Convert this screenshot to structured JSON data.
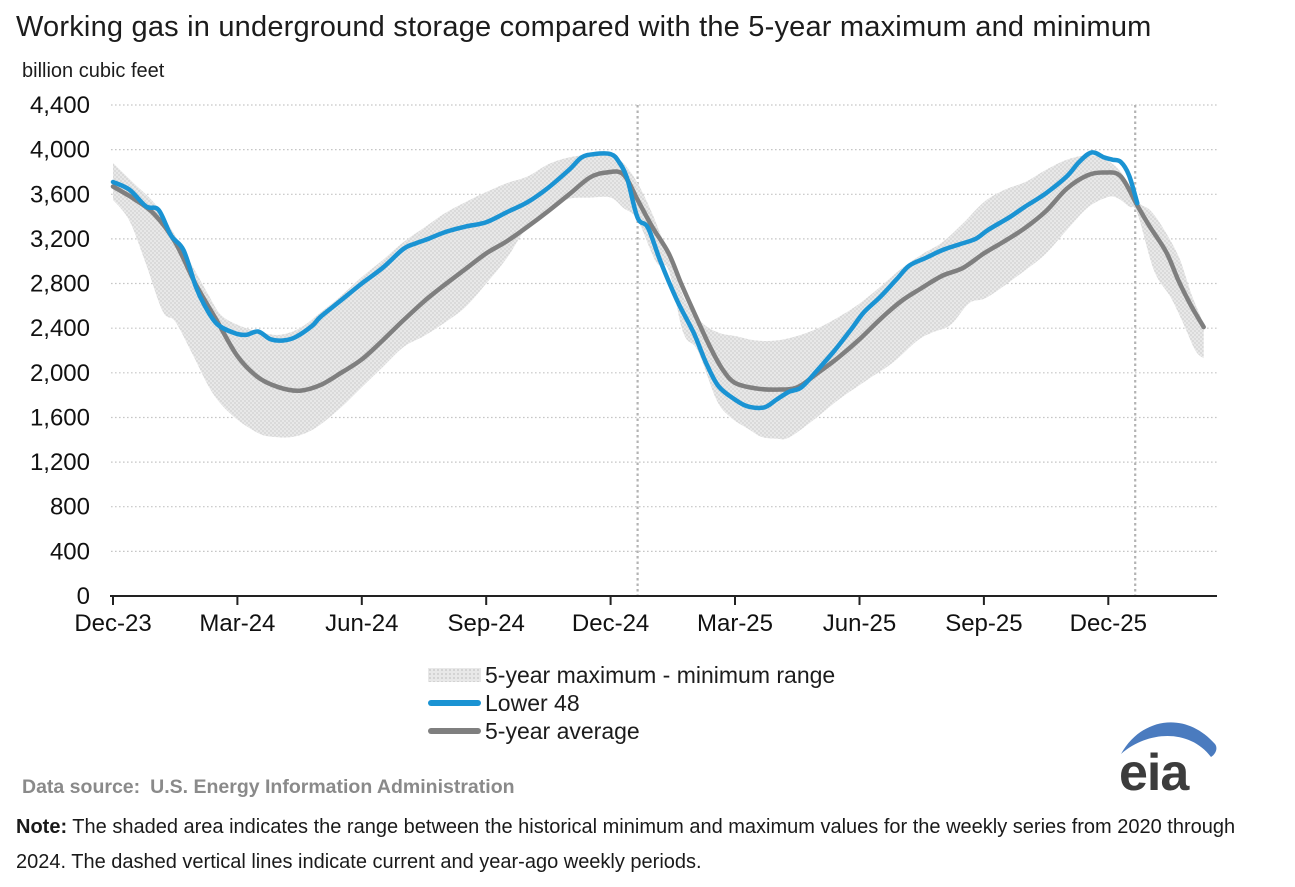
{
  "title": "Working gas in underground storage compared with the 5-year maximum and minimum",
  "unit_label": "billion cubic feet",
  "legend": [
    {
      "label": "5-year maximum - minimum range",
      "type": "band",
      "color": "#e8e8e8"
    },
    {
      "label": "Lower 48",
      "type": "line",
      "color": "#1a93d3"
    },
    {
      "label": "5-year average",
      "type": "line",
      "color": "#7f7f7f"
    }
  ],
  "footer": {
    "data_source_label": "Data source:",
    "data_source": "U.S. Energy Information Administration",
    "note_label": "Note:",
    "note_text": " The shaded area indicates the range between the historical minimum and maximum values for the weekly series from 2020 through 2024. The dashed vertical lines indicate current and year-ago weekly periods.",
    "logo_text": "eia"
  },
  "chart_data": {
    "type": "line",
    "title": "Working gas in underground storage compared with the 5-year maximum and minimum",
    "xlabel": "",
    "ylabel": "billion cubic feet",
    "ylim": [
      0,
      4400
    ],
    "y_tick_step": 400,
    "y_tick_labels": [
      "0",
      "400",
      "800",
      "1,200",
      "1,600",
      "2,000",
      "2,400",
      "2,800",
      "3,200",
      "3,600",
      "4,000",
      "4,400"
    ],
    "x_unit": "months since Dec-2023",
    "x_tick_months": [
      0,
      3,
      6,
      9,
      12,
      15,
      18,
      21,
      24
    ],
    "x_tick_labels": [
      "Dec-23",
      "Mar-24",
      "Jun-24",
      "Sep-24",
      "Dec-24",
      "Mar-25",
      "Jun-25",
      "Sep-25",
      "Dec-25"
    ],
    "xlim_months": [
      0,
      26.3
    ],
    "grid": "dotted-horizontal",
    "legend_position": "bottom-center",
    "dashed_vlines_months": [
      12.65,
      24.65
    ],
    "dashed_vlines_meaning": "current and year-ago weekly periods",
    "colors": {
      "lower48": "#1a93d3",
      "average": "#7f7f7f",
      "band_fill": "#e8e8e8",
      "band_dots": "#cfcfcf",
      "gridline": "#c6c6c6",
      "axis": "#222222",
      "dashed_vline": "#b3b3b3"
    },
    "series": [
      {
        "name": "5-year maximum",
        "role": "band-top",
        "points": [
          [
            0,
            3880
          ],
          [
            0.5,
            3700
          ],
          [
            1,
            3520
          ],
          [
            1.4,
            3290
          ],
          [
            1.7,
            3100
          ],
          [
            2,
            2900
          ],
          [
            2.3,
            2700
          ],
          [
            2.6,
            2520
          ],
          [
            3,
            2430
          ],
          [
            3.5,
            2370
          ],
          [
            4,
            2340
          ],
          [
            4.5,
            2400
          ],
          [
            5,
            2540
          ],
          [
            5.5,
            2690
          ],
          [
            6,
            2860
          ],
          [
            6.5,
            3010
          ],
          [
            7,
            3170
          ],
          [
            7.5,
            3300
          ],
          [
            8,
            3430
          ],
          [
            8.5,
            3530
          ],
          [
            9,
            3620
          ],
          [
            9.5,
            3700
          ],
          [
            10,
            3760
          ],
          [
            10.5,
            3870
          ],
          [
            11,
            3930
          ],
          [
            11.5,
            3955
          ],
          [
            12,
            3940
          ],
          [
            12.3,
            3880
          ],
          [
            12.65,
            3700
          ],
          [
            13,
            3430
          ],
          [
            13.4,
            3050
          ],
          [
            13.8,
            2650
          ],
          [
            14.2,
            2450
          ],
          [
            14.6,
            2360
          ],
          [
            15,
            2330
          ],
          [
            15.5,
            2290
          ],
          [
            16,
            2290
          ],
          [
            16.5,
            2330
          ],
          [
            17,
            2400
          ],
          [
            17.5,
            2500
          ],
          [
            18,
            2620
          ],
          [
            18.5,
            2770
          ],
          [
            19,
            2930
          ],
          [
            19.5,
            3060
          ],
          [
            20,
            3170
          ],
          [
            20.5,
            3340
          ],
          [
            21,
            3530
          ],
          [
            21.5,
            3640
          ],
          [
            22,
            3710
          ],
          [
            22.5,
            3820
          ],
          [
            23,
            3910
          ],
          [
            23.5,
            3950
          ],
          [
            23.9,
            3920
          ],
          [
            24.3,
            3800
          ],
          [
            24.7,
            3540
          ],
          [
            25,
            3460
          ],
          [
            25.3,
            3310
          ],
          [
            25.7,
            3040
          ],
          [
            26,
            2710
          ],
          [
            26.3,
            2440
          ]
        ]
      },
      {
        "name": "5-year minimum",
        "role": "band-bottom",
        "points": [
          [
            0,
            3550
          ],
          [
            0.4,
            3360
          ],
          [
            0.8,
            2970
          ],
          [
            1.2,
            2550
          ],
          [
            1.5,
            2460
          ],
          [
            1.9,
            2180
          ],
          [
            2.4,
            1820
          ],
          [
            2.9,
            1610
          ],
          [
            3.5,
            1460
          ],
          [
            3.9,
            1425
          ],
          [
            4.4,
            1430
          ],
          [
            4.9,
            1510
          ],
          [
            5.5,
            1690
          ],
          [
            6,
            1870
          ],
          [
            6.5,
            2050
          ],
          [
            7,
            2230
          ],
          [
            7.5,
            2330
          ],
          [
            8,
            2450
          ],
          [
            8.5,
            2590
          ],
          [
            9,
            2800
          ],
          [
            9.5,
            3030
          ],
          [
            10,
            3310
          ],
          [
            10.6,
            3480
          ],
          [
            11,
            3560
          ],
          [
            11.5,
            3570
          ],
          [
            12,
            3570
          ],
          [
            12.3,
            3480
          ],
          [
            12.65,
            3370
          ],
          [
            13.1,
            2990
          ],
          [
            13.4,
            2920
          ],
          [
            13.75,
            2360
          ],
          [
            14.1,
            2200
          ],
          [
            14.55,
            1760
          ],
          [
            14.9,
            1600
          ],
          [
            15.35,
            1490
          ],
          [
            15.65,
            1425
          ],
          [
            16,
            1410
          ],
          [
            16.3,
            1420
          ],
          [
            16.9,
            1580
          ],
          [
            17.5,
            1760
          ],
          [
            18.2,
            1940
          ],
          [
            18.8,
            2090
          ],
          [
            19.4,
            2290
          ],
          [
            19.75,
            2360
          ],
          [
            20.2,
            2430
          ],
          [
            20.65,
            2625
          ],
          [
            21.1,
            2680
          ],
          [
            22,
            2920
          ],
          [
            22.5,
            3070
          ],
          [
            23,
            3280
          ],
          [
            23.5,
            3480
          ],
          [
            23.95,
            3570
          ],
          [
            24.2,
            3570
          ],
          [
            24.5,
            3490
          ],
          [
            24.7,
            3430
          ],
          [
            25.1,
            2920
          ],
          [
            25.5,
            2680
          ],
          [
            25.8,
            2450
          ],
          [
            26.1,
            2200
          ],
          [
            26.3,
            2130
          ]
        ]
      },
      {
        "name": "Lower 48",
        "role": "line",
        "points": [
          [
            0,
            3710
          ],
          [
            0.4,
            3640
          ],
          [
            0.8,
            3490
          ],
          [
            1.1,
            3460
          ],
          [
            1.4,
            3230
          ],
          [
            1.7,
            3100
          ],
          [
            2,
            2770
          ],
          [
            2.2,
            2610
          ],
          [
            2.5,
            2440
          ],
          [
            2.9,
            2360
          ],
          [
            3.2,
            2340
          ],
          [
            3.5,
            2370
          ],
          [
            3.8,
            2300
          ],
          [
            4.1,
            2290
          ],
          [
            4.4,
            2320
          ],
          [
            4.8,
            2420
          ],
          [
            5,
            2500
          ],
          [
            5.5,
            2650
          ],
          [
            6,
            2800
          ],
          [
            6.5,
            2940
          ],
          [
            7,
            3110
          ],
          [
            7.3,
            3160
          ],
          [
            7.6,
            3200
          ],
          [
            8,
            3260
          ],
          [
            8.5,
            3310
          ],
          [
            9,
            3350
          ],
          [
            9.5,
            3440
          ],
          [
            10,
            3530
          ],
          [
            10.5,
            3660
          ],
          [
            11,
            3820
          ],
          [
            11.3,
            3930
          ],
          [
            11.6,
            3960
          ],
          [
            12,
            3960
          ],
          [
            12.2,
            3890
          ],
          [
            12.4,
            3740
          ],
          [
            12.65,
            3390
          ],
          [
            12.9,
            3300
          ],
          [
            13.2,
            3000
          ],
          [
            13.6,
            2650
          ],
          [
            14,
            2360
          ],
          [
            14.3,
            2090
          ],
          [
            14.6,
            1880
          ],
          [
            15,
            1760
          ],
          [
            15.3,
            1700
          ],
          [
            15.7,
            1690
          ],
          [
            16,
            1760
          ],
          [
            16.3,
            1830
          ],
          [
            16.6,
            1870
          ],
          [
            17,
            2030
          ],
          [
            17.4,
            2200
          ],
          [
            17.8,
            2390
          ],
          [
            18.1,
            2540
          ],
          [
            18.5,
            2680
          ],
          [
            18.9,
            2840
          ],
          [
            19.2,
            2960
          ],
          [
            19.6,
            3030
          ],
          [
            20,
            3100
          ],
          [
            20.4,
            3150
          ],
          [
            20.8,
            3200
          ],
          [
            21.1,
            3280
          ],
          [
            21.6,
            3390
          ],
          [
            22,
            3490
          ],
          [
            22.5,
            3610
          ],
          [
            23,
            3760
          ],
          [
            23.3,
            3890
          ],
          [
            23.6,
            3975
          ],
          [
            23.9,
            3930
          ],
          [
            24.1,
            3910
          ],
          [
            24.3,
            3890
          ],
          [
            24.5,
            3770
          ],
          [
            24.7,
            3520
          ]
        ]
      },
      {
        "name": "5-year average",
        "role": "line",
        "points": [
          [
            0,
            3670
          ],
          [
            0.5,
            3560
          ],
          [
            1,
            3420
          ],
          [
            1.5,
            3170
          ],
          [
            2,
            2790
          ],
          [
            2.5,
            2470
          ],
          [
            3,
            2150
          ],
          [
            3.5,
            1960
          ],
          [
            4,
            1870
          ],
          [
            4.5,
            1840
          ],
          [
            5,
            1890
          ],
          [
            5.5,
            2000
          ],
          [
            6,
            2120
          ],
          [
            6.5,
            2290
          ],
          [
            7,
            2470
          ],
          [
            7.5,
            2640
          ],
          [
            8,
            2790
          ],
          [
            8.5,
            2930
          ],
          [
            9,
            3070
          ],
          [
            9.5,
            3180
          ],
          [
            10,
            3310
          ],
          [
            10.5,
            3450
          ],
          [
            11,
            3600
          ],
          [
            11.5,
            3750
          ],
          [
            11.9,
            3795
          ],
          [
            12.3,
            3780
          ],
          [
            12.65,
            3550
          ],
          [
            13,
            3310
          ],
          [
            13.4,
            3070
          ],
          [
            13.7,
            2800
          ],
          [
            14,
            2550
          ],
          [
            14.4,
            2230
          ],
          [
            14.7,
            2030
          ],
          [
            15,
            1910
          ],
          [
            15.5,
            1860
          ],
          [
            16,
            1850
          ],
          [
            16.5,
            1870
          ],
          [
            17,
            2000
          ],
          [
            17.5,
            2140
          ],
          [
            18,
            2300
          ],
          [
            18.5,
            2480
          ],
          [
            19,
            2640
          ],
          [
            19.5,
            2760
          ],
          [
            20,
            2870
          ],
          [
            20.5,
            2940
          ],
          [
            21,
            3070
          ],
          [
            21.5,
            3180
          ],
          [
            22,
            3300
          ],
          [
            22.5,
            3450
          ],
          [
            23,
            3650
          ],
          [
            23.5,
            3770
          ],
          [
            23.9,
            3795
          ],
          [
            24.3,
            3760
          ],
          [
            24.7,
            3500
          ],
          [
            25,
            3310
          ],
          [
            25.4,
            3080
          ],
          [
            25.7,
            2820
          ],
          [
            26,
            2600
          ],
          [
            26.3,
            2410
          ]
        ]
      }
    ]
  }
}
